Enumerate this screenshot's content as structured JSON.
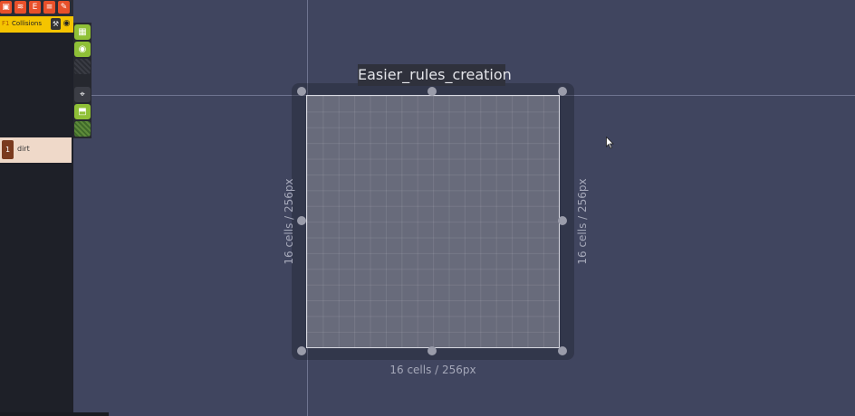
{
  "layers_panel": {
    "layer": {
      "prefix": "F1",
      "name": "Collisions"
    },
    "tiles": [
      {
        "index": "1",
        "name": "dirt"
      }
    ]
  },
  "toolbar": {
    "icons": [
      "image-icon",
      "layers-icon",
      "objects-icon",
      "list-icon",
      "brush-icon"
    ]
  },
  "tool_strip": {
    "icons": [
      "grid-icon",
      "eye-icon",
      "hatch-pattern-icon",
      "focus-icon",
      "paint-bucket-icon",
      "hatch-pattern-green-icon"
    ]
  },
  "room": {
    "title": "Easier_rules_creation",
    "width_label": "16 cells / 256px",
    "height_label_left": "16 cells / 256px",
    "height_label_right": "16 cells / 256px"
  },
  "colors": {
    "canvas_bg": "#40455f",
    "accent_orange": "#e8502a",
    "layer_yellow": "#f5c400",
    "tool_green": "#8fc037",
    "tile_chip": "#7a3a1e"
  }
}
